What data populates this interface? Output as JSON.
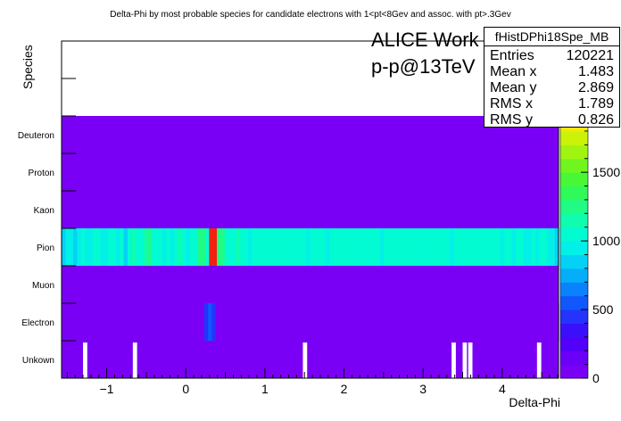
{
  "chart_data": {
    "type": "heatmap",
    "title": "Delta-Phi by most probable species for candidate electrons with 1<pt<8Gev and assoc. with pt>.3Gev",
    "xlabel": "Delta-Phi",
    "ylabel": "Species",
    "xlim": [
      -1.5708,
      4.7124
    ],
    "x_ticks": [
      -1,
      0,
      1,
      2,
      3,
      4
    ],
    "y_categories": [
      "Unkown",
      "Electron",
      "Muon",
      "Pion",
      "Kaon",
      "Proton",
      "Deuteron"
    ],
    "y_extra_empty_rows": 2,
    "zlim": [
      0,
      2300
    ],
    "z_ticks": [
      0,
      500,
      1000,
      1500,
      2000
    ],
    "z_tick_labels": [
      "0",
      "500",
      "1000",
      "1500",
      "2000"
    ],
    "z_top_partial_label": "0",
    "rows": [
      {
        "species": "Deuteron",
        "values": [
          0
        ]
      },
      {
        "species": "Proton",
        "values": [
          0
        ]
      },
      {
        "species": "Kaon",
        "values": [
          0
        ]
      },
      {
        "species": "Pion",
        "values": [
          850,
          900,
          920,
          880,
          950,
          1000,
          960,
          910,
          1000,
          1000,
          980,
          940,
          1000,
          1050,
          950,
          1000,
          880,
          1000,
          1100,
          1050,
          1000,
          1150,
          1200,
          1050,
          1000,
          1000,
          980,
          1000,
          920,
          1000,
          1100,
          1050,
          950,
          1000,
          1000,
          1200,
          1300,
          1050,
          2300,
          2200,
          1200,
          1250,
          1050,
          1000,
          1000,
          1100,
          1000,
          1000,
          950,
          1000,
          1000,
          1050,
          1000,
          1000,
          1000,
          1000,
          1000,
          1000,
          1000,
          1050,
          1000,
          1000,
          1000,
          980,
          1000,
          1000,
          1000,
          1000,
          950,
          1000,
          1000,
          1000,
          1000,
          1000,
          1000,
          1000,
          1000,
          1000,
          1000,
          1000,
          1000,
          1000,
          980,
          1000,
          1000,
          1000,
          1000,
          1000,
          1000,
          1000,
          1050,
          1000,
          1000,
          1000,
          1000,
          1000,
          1000,
          1000,
          1000,
          1000,
          980,
          1000,
          1000,
          1000,
          1000,
          1000,
          1000,
          1000,
          1000,
          1000,
          1000,
          1000,
          1000,
          980,
          1000,
          1000,
          920,
          1000,
          1000,
          960,
          950,
          1000,
          930,
          1000,
          1000,
          900,
          920,
          880
        ]
      },
      {
        "species": "Muon",
        "values": [
          0
        ]
      },
      {
        "species": "Electron",
        "values": [
          0,
          0,
          0,
          0,
          0,
          0,
          0,
          0,
          0,
          0,
          0,
          0,
          0,
          0,
          0,
          0,
          0,
          0,
          0,
          0,
          0,
          0,
          0,
          0,
          0,
          0,
          0,
          0,
          0,
          0,
          0,
          0,
          0,
          0,
          0,
          0,
          0,
          450,
          500,
          420,
          0,
          0,
          0,
          0,
          0,
          0,
          0,
          0,
          0,
          0,
          0,
          0,
          0,
          0,
          0,
          0,
          0,
          0,
          0,
          0,
          0,
          0,
          0,
          0,
          0,
          0,
          0,
          0,
          0,
          0,
          0,
          0,
          0,
          0,
          0,
          0,
          0,
          0,
          0,
          0,
          0,
          0,
          0,
          0,
          0,
          0,
          0,
          0,
          0,
          0,
          0,
          0,
          0,
          0,
          0,
          0,
          0,
          0,
          0,
          0,
          0,
          0,
          0,
          0,
          0,
          0,
          0,
          0,
          0,
          0,
          0,
          0,
          0,
          0,
          0,
          0,
          0,
          0,
          0,
          0,
          0,
          0,
          0,
          0,
          0,
          0,
          0,
          0,
          0
        ]
      },
      {
        "species": "Unkown",
        "values": [
          0
        ]
      }
    ],
    "unkown_empty_x": [
      -1.3,
      -0.67,
      1.48,
      3.36,
      3.5,
      3.57,
      4.44
    ]
  },
  "stats": {
    "name": "fHistDPhi18Spe_MB",
    "entries_label": "Entries",
    "entries": "120221",
    "meanx_label": "Mean x",
    "meanx": "1.483",
    "meany_label": "Mean y",
    "meany": "2.869",
    "rmsx_label": "RMS x",
    "rmsx": "1.789",
    "rmsy_label": "RMS y",
    "rmsy": "0.826"
  },
  "watermark": {
    "line1": "ALICE Work in Progress",
    "line2": "p-p@13TeV"
  }
}
